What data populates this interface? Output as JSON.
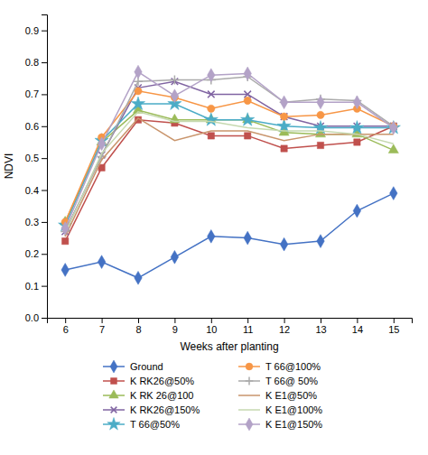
{
  "chart_data": {
    "type": "line",
    "xlabel": "Weeks after planting",
    "ylabel": "NDVI",
    "x": [
      6,
      7,
      8,
      9,
      10,
      11,
      12,
      13,
      14,
      15
    ],
    "xlim": [
      5.5,
      15.5
    ],
    "xticks": [
      6,
      7,
      8,
      9,
      10,
      11,
      12,
      13,
      14,
      15
    ],
    "ylim": [
      0,
      0.95
    ],
    "yticks": [
      {
        "value": 0,
        "label": "0.0"
      },
      0.1,
      0.2,
      0.3,
      0.4,
      0.5,
      0.6,
      0.7,
      0.8,
      0.9
    ],
    "grid": false,
    "legend": "bottom",
    "series": [
      {
        "name": "Ground",
        "color": "#4472C4",
        "marker": "diamond",
        "values": [
          0.15,
          0.175,
          0.125,
          0.19,
          0.255,
          0.25,
          0.23,
          0.24,
          0.335,
          0.39
        ]
      },
      {
        "name": "K RK26@50%",
        "color": "#C0504D",
        "marker": "square",
        "values": [
          0.24,
          0.47,
          0.62,
          0.61,
          0.57,
          0.57,
          0.53,
          0.54,
          0.55,
          0.6
        ]
      },
      {
        "name": "K RK 26@100",
        "color": "#9BBB59",
        "marker": "triangle",
        "values": [
          0.3,
          0.55,
          0.65,
          0.62,
          0.62,
          0.62,
          0.58,
          0.575,
          0.575,
          0.525
        ]
      },
      {
        "name": "K RK26@150%",
        "color": "#8064A2",
        "marker": "x",
        "values": [
          0.27,
          0.51,
          0.72,
          0.74,
          0.7,
          0.7,
          0.63,
          0.6,
          0.6,
          0.6
        ]
      },
      {
        "name": "T 66@50%",
        "color": "#4BACC6",
        "marker": "star",
        "values": [
          0.29,
          0.555,
          0.67,
          0.67,
          0.62,
          0.62,
          0.6,
          0.595,
          0.595,
          0.595
        ]
      },
      {
        "name": "T 66@100%",
        "color": "#F79646",
        "marker": "circle",
        "values": [
          0.3,
          0.565,
          0.71,
          0.69,
          0.655,
          0.68,
          0.63,
          0.635,
          0.655,
          0.6
        ]
      },
      {
        "name": "T 66@ 50%",
        "color": "#AAAAAA",
        "marker": "plus",
        "values": [
          0.27,
          0.505,
          0.74,
          0.745,
          0.745,
          0.755,
          0.675,
          0.685,
          0.68,
          0.6
        ]
      },
      {
        "name": "K E1@50%",
        "color": "#C9956C",
        "marker": "none",
        "values": [
          0.255,
          0.495,
          0.625,
          0.555,
          0.585,
          0.585,
          0.555,
          0.575,
          0.575,
          0.575
        ]
      },
      {
        "name": "K E1@100%",
        "color": "#C6D9B0",
        "marker": "none",
        "values": [
          0.265,
          0.515,
          0.645,
          0.615,
          0.615,
          0.595,
          0.585,
          0.585,
          0.575,
          0.545
        ]
      },
      {
        "name": "K E1@150%",
        "color": "#B3A2C7",
        "marker": "diamond",
        "values": [
          0.28,
          0.545,
          0.77,
          0.695,
          0.76,
          0.765,
          0.675,
          0.675,
          0.675,
          0.595
        ]
      }
    ]
  }
}
